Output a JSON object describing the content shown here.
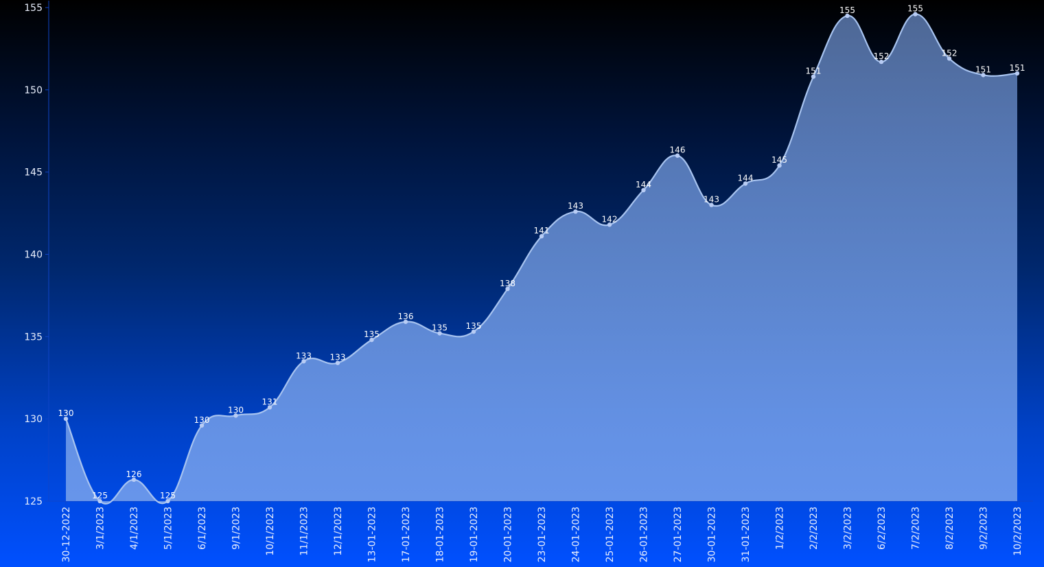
{
  "chart_data": {
    "type": "area",
    "title": "",
    "xlabel": "",
    "ylabel": "",
    "ylim": [
      125,
      155
    ],
    "y_ticks": [
      125,
      130,
      135,
      140,
      145,
      150,
      155
    ],
    "grid": false,
    "legend": "none",
    "categories": [
      "30-12-2022",
      "3/1/2023",
      "4/1/2023",
      "5/1/2023",
      "6/1/2023",
      "9/1/2023",
      "10/1/2023",
      "11/1/2023",
      "12/1/2023",
      "13-01-2023",
      "17-01-2023",
      "18-01-2023",
      "19-01-2023",
      "20-01-2023",
      "23-01-2023",
      "24-01-2023",
      "25-01-2023",
      "26-01-2023",
      "27-01-2023",
      "30-01-2023",
      "31-01-2023",
      "1/2/2023",
      "2/2/2023",
      "3/2/2023",
      "6/2/2023",
      "7/2/2023",
      "8/2/2023",
      "9/2/2023",
      "10/2/2023"
    ],
    "values": [
      130.0,
      125.0,
      126.3,
      125.0,
      129.6,
      130.2,
      130.7,
      133.5,
      133.4,
      134.8,
      135.9,
      135.2,
      135.3,
      137.9,
      141.1,
      142.6,
      141.8,
      143.9,
      146.0,
      143.0,
      144.3,
      145.4,
      150.8,
      154.5,
      151.7,
      154.6,
      151.9,
      150.9,
      151.0
    ],
    "data_labels": [
      "130",
      "125",
      "126",
      "125",
      "130",
      "130",
      "131",
      "133",
      "133",
      "135",
      "136",
      "135",
      "135",
      "138",
      "141",
      "143",
      "142",
      "144",
      "146",
      "143",
      "144",
      "145",
      "151",
      "155",
      "152",
      "155",
      "152",
      "151",
      "151"
    ],
    "colors": {
      "line": "#a8c4f0",
      "area": "#7ea6ec",
      "marker": "#b8ccf4",
      "axis": "#0f45c8",
      "text": "#ffffff"
    }
  }
}
